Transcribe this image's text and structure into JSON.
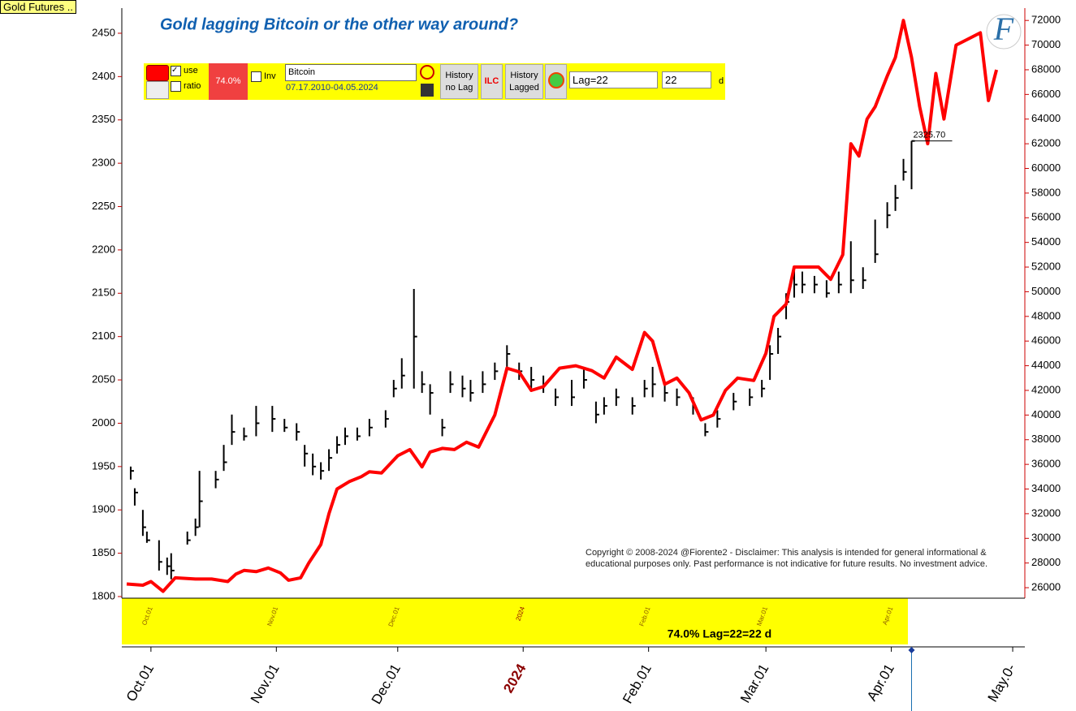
{
  "chart_data": {
    "type": "combo",
    "title": "Gold lagging Bitcoin or the other way around?",
    "xlim": [
      -1.2,
      222
    ],
    "xticks": [
      {
        "value": 6,
        "label": "Oct.01"
      },
      {
        "value": 37,
        "label": "Nov.01"
      },
      {
        "value": 67,
        "label": "Dec.01"
      },
      {
        "value": 98,
        "label": "2024",
        "color": "#8b0000"
      },
      {
        "value": 129,
        "label": "Feb.01"
      },
      {
        "value": 158,
        "label": "Mar.01"
      },
      {
        "value": 189,
        "label": "Apr.01"
      },
      {
        "value": 219,
        "label": "May.0-"
      }
    ],
    "ylim": [
      1800,
      2479
    ],
    "yticks": [
      1800,
      1850,
      1900,
      1950,
      2000,
      2050,
      2100,
      2150,
      2200,
      2250,
      2300,
      2350,
      2400,
      2450
    ],
    "y2lim": [
      25280,
      73000
    ],
    "y2ticks": [
      26000,
      28000,
      30000,
      32000,
      34000,
      36000,
      38000,
      40000,
      42000,
      44000,
      46000,
      48000,
      50000,
      52000,
      54000,
      56000,
      58000,
      60000,
      62000,
      64000,
      66000,
      68000,
      70000,
      72000
    ],
    "annotation": {
      "value": 2325.7,
      "label": "2325.70"
    },
    "series": [
      {
        "name": "Gold Futures ..",
        "type": "ohlc",
        "color": "#000000",
        "axis": "y",
        "x": [
          1,
          2,
          4,
          5,
          8,
          10,
          11,
          15,
          17,
          18,
          22,
          24,
          26,
          29,
          32,
          36,
          39,
          42,
          44,
          46,
          48,
          50,
          52,
          54,
          57,
          60,
          64,
          66,
          68,
          71,
          73,
          75,
          78,
          80,
          83,
          85,
          88,
          91,
          94,
          97,
          100,
          103,
          106,
          110,
          113,
          116,
          118,
          121,
          125,
          128,
          130,
          133,
          136,
          140,
          143,
          146,
          150,
          154,
          157,
          159,
          161,
          163,
          165,
          167,
          170,
          173,
          176,
          179,
          182,
          185,
          188,
          190,
          192,
          194
        ],
        "high": [
          1950,
          1925,
          1900,
          1875,
          1865,
          1845,
          1850,
          1875,
          1890,
          1945,
          1945,
          1975,
          2010,
          1995,
          2020,
          2020,
          2005,
          2000,
          1975,
          1965,
          1955,
          1970,
          1985,
          1995,
          1995,
          2005,
          2015,
          2050,
          2075,
          2155,
          2060,
          2045,
          2005,
          2060,
          2055,
          2050,
          2060,
          2070,
          2090,
          2070,
          2065,
          2055,
          2040,
          2050,
          2065,
          2025,
          2030,
          2040,
          2030,
          2050,
          2065,
          2045,
          2040,
          2030,
          2000,
          2015,
          2035,
          2040,
          2050,
          2090,
          2110,
          2150,
          2180,
          2175,
          2170,
          2165,
          2175,
          2210,
          2180,
          2235,
          2255,
          2275,
          2305,
          2325.7
        ],
        "low": [
          1935,
          1905,
          1870,
          1862,
          1830,
          1825,
          1820,
          1860,
          1870,
          1880,
          1925,
          1945,
          1975,
          1980,
          1985,
          1990,
          1990,
          1980,
          1950,
          1940,
          1935,
          1945,
          1965,
          1975,
          1980,
          1985,
          1995,
          2030,
          2040,
          2040,
          2035,
          2010,
          1985,
          2035,
          2030,
          2025,
          2035,
          2050,
          2065,
          2050,
          2040,
          2035,
          2020,
          2020,
          2040,
          2000,
          2010,
          2020,
          2010,
          2030,
          2030,
          2025,
          2020,
          2010,
          1985,
          1995,
          2015,
          2020,
          2030,
          2050,
          2080,
          2120,
          2145,
          2150,
          2150,
          2145,
          2150,
          2150,
          2155,
          2185,
          2225,
          2245,
          2280,
          2270
        ],
        "close": [
          1945,
          1920,
          1880,
          1865,
          1840,
          1835,
          1830,
          1865,
          1880,
          1910,
          1935,
          1955,
          1990,
          1985,
          2000,
          2005,
          1995,
          1990,
          1965,
          1950,
          1945,
          1960,
          1975,
          1985,
          1985,
          1995,
          2005,
          2040,
          2055,
          2100,
          2045,
          2035,
          1995,
          2045,
          2040,
          2035,
          2045,
          2060,
          2080,
          2060,
          2050,
          2045,
          2030,
          2030,
          2050,
          2010,
          2020,
          2030,
          2020,
          2040,
          2045,
          2035,
          2030,
          2020,
          1990,
          2005,
          2025,
          2030,
          2040,
          2080,
          2100,
          2140,
          2160,
          2160,
          2160,
          2150,
          2160,
          2165,
          2165,
          2195,
          2240,
          2260,
          2290,
          2325.7
        ]
      },
      {
        "name": "Bitcoin",
        "type": "line",
        "color": "#ff0000",
        "axis": "y2",
        "x": [
          0,
          4,
          6,
          9,
          12,
          17,
          21,
          25,
          27,
          29,
          32,
          35,
          38,
          40,
          43,
          45,
          48,
          50,
          52,
          55,
          58,
          60,
          63,
          67,
          70,
          73,
          75,
          78,
          81,
          84,
          87,
          91,
          94,
          97,
          100,
          103,
          107,
          111,
          115,
          118,
          121,
          125,
          128,
          130,
          133,
          136,
          139,
          142,
          145,
          148,
          151,
          155,
          158,
          160,
          163,
          165,
          168,
          171,
          174,
          177,
          179,
          181,
          183,
          185,
          188,
          190,
          192,
          194,
          196,
          198,
          200,
          202,
          205,
          208,
          211,
          213,
          215
        ],
        "values": [
          26300,
          26200,
          26500,
          25700,
          26800,
          26700,
          26700,
          26500,
          27100,
          27400,
          27300,
          27600,
          27200,
          26600,
          26800,
          28000,
          29500,
          32000,
          34000,
          34600,
          35000,
          35400,
          35300,
          36700,
          37200,
          35800,
          37000,
          37300,
          37200,
          37800,
          37400,
          40000,
          43800,
          43500,
          42000,
          42300,
          43800,
          44000,
          43600,
          43000,
          44700,
          43700,
          46700,
          46000,
          42500,
          43000,
          41800,
          39600,
          40000,
          42000,
          43000,
          42800,
          45000,
          48000,
          49000,
          52000,
          52000,
          52000,
          51000,
          53000,
          62000,
          61000,
          64000,
          65000,
          67500,
          69000,
          72000,
          69000,
          65000,
          62000,
          67700,
          64000,
          70000,
          70500,
          71000,
          65500,
          68000
        ]
      }
    ]
  },
  "ui": {
    "use": "use",
    "ratio": "ratio",
    "correlation": "74.0%",
    "inv": "Inv",
    "range": "07.17.2010-04.05.2024",
    "history_no_lag": "History no Lag",
    "ilc": "ILC",
    "history_lagged": "History Lagged",
    "lag_select": "Lag=22",
    "lag_input": "22",
    "unit": "d",
    "band_label": "74.0% Lag=22=22 d",
    "logo": "F",
    "copyright": "Copyright © 2008-2024 @Fiorente2 -  Disclaimer: This analysis is intended for general informational & educational purposes only. Past performance is not indicative for future results. No investment advice."
  }
}
